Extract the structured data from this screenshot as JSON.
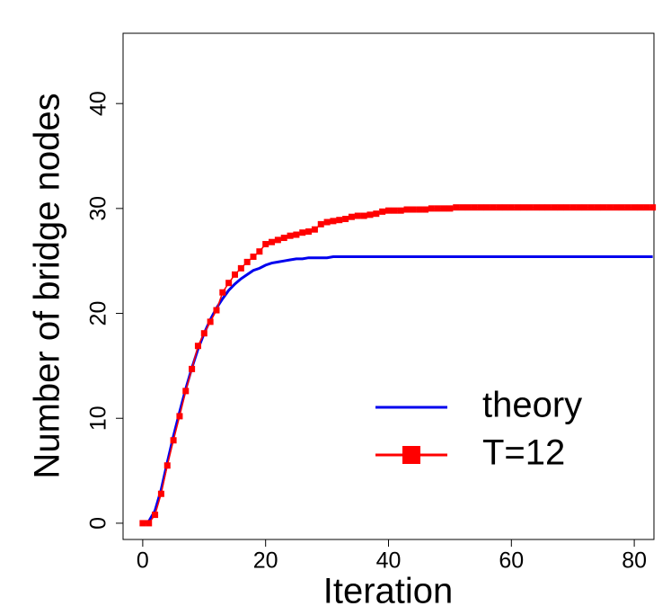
{
  "chart_data": {
    "type": "line",
    "x_label": "Iteration",
    "y_label": "Number of bridge nodes",
    "x": [
      0,
      1,
      2,
      3,
      4,
      5,
      6,
      7,
      8,
      9,
      10,
      11,
      12,
      13,
      14,
      15,
      16,
      17,
      18,
      19,
      20,
      21,
      22,
      23,
      24,
      25,
      26,
      27,
      28,
      29,
      30,
      31,
      32,
      33,
      34,
      35,
      36,
      37,
      38,
      39,
      40,
      41,
      42,
      43,
      44,
      45,
      46,
      47,
      48,
      49,
      50,
      51,
      52,
      53,
      54,
      55,
      56,
      57,
      58,
      59,
      60,
      61,
      62,
      63,
      64,
      65,
      66,
      67,
      68,
      69,
      70,
      71,
      72,
      73,
      74,
      75,
      76,
      77,
      78,
      79,
      80,
      81,
      82,
      83
    ],
    "series": [
      {
        "name": "theory",
        "color": "#0000ee",
        "marker": false,
        "values": [
          0,
          0.2,
          1.2,
          3.2,
          5.8,
          8.3,
          10.6,
          12.8,
          14.8,
          16.6,
          18.1,
          19.4,
          20.5,
          21.4,
          22.2,
          22.8,
          23.3,
          23.7,
          24.1,
          24.3,
          24.6,
          24.8,
          24.9,
          25.0,
          25.1,
          25.2,
          25.2,
          25.3,
          25.3,
          25.3,
          25.3,
          25.4,
          25.4,
          25.4,
          25.4,
          25.4,
          25.4,
          25.4,
          25.4,
          25.4,
          25.4,
          25.4,
          25.4,
          25.4,
          25.4,
          25.4,
          25.4,
          25.4,
          25.4,
          25.4,
          25.4,
          25.4,
          25.4,
          25.4,
          25.4,
          25.4,
          25.4,
          25.4,
          25.4,
          25.4,
          25.4,
          25.4,
          25.4,
          25.4,
          25.4,
          25.4,
          25.4,
          25.4,
          25.4,
          25.4,
          25.4,
          25.4,
          25.4,
          25.4,
          25.4,
          25.4,
          25.4,
          25.4,
          25.4,
          25.4,
          25.4,
          25.4,
          25.4,
          25.4
        ]
      },
      {
        "name": "T=12",
        "color": "#ff0000",
        "marker": true,
        "values": [
          0,
          0,
          0.8,
          2.8,
          5.5,
          7.9,
          10.2,
          12.6,
          14.7,
          16.9,
          18.1,
          19.2,
          20.3,
          22.0,
          22.9,
          23.7,
          24.3,
          24.9,
          25.4,
          25.9,
          26.6,
          26.8,
          27.0,
          27.2,
          27.4,
          27.5,
          27.7,
          27.8,
          28.0,
          28.5,
          28.7,
          28.8,
          28.9,
          29.0,
          29.2,
          29.3,
          29.3,
          29.4,
          29.5,
          29.7,
          29.8,
          29.8,
          29.8,
          29.9,
          29.9,
          29.9,
          29.9,
          30.0,
          30.0,
          30.0,
          30.0,
          30.1,
          30.1,
          30.1,
          30.1,
          30.1,
          30.1,
          30.1,
          30.1,
          30.1,
          30.1,
          30.1,
          30.1,
          30.1,
          30.1,
          30.1,
          30.1,
          30.1,
          30.1,
          30.1,
          30.1,
          30.1,
          30.1,
          30.1,
          30.1,
          30.1,
          30.1,
          30.1,
          30.1,
          30.1,
          30.1,
          30.1,
          30.1,
          30.1
        ]
      }
    ],
    "xlim": [
      -3.2,
      83.2
    ],
    "ylim": [
      -1.55,
      46.7
    ],
    "xticks": [
      0,
      20,
      40,
      60,
      80
    ],
    "yticks": [
      0,
      10,
      20,
      30,
      40
    ]
  }
}
